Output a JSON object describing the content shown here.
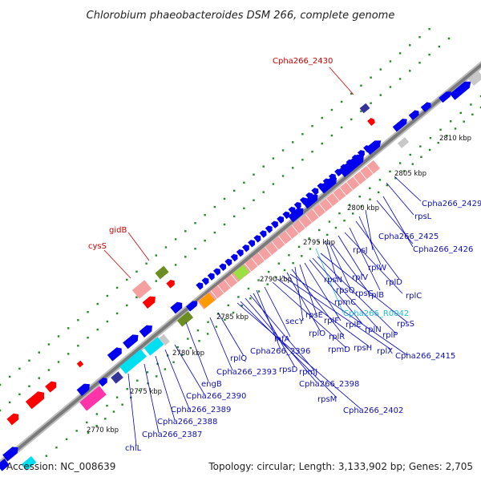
{
  "title": "Chlorobium phaeobacteroides DSM 266, complete genome",
  "footer": {
    "accession": "Accession: NC_008639",
    "topology": "Topology: circular; Length: 3,133,902 bp; Genes: 2,705"
  },
  "colors": {
    "backbone": "#888888",
    "gene_blue": "#0000ee",
    "gene_red": "#ff0000",
    "gene_pink": "#f4a0a0",
    "gene_cyan": "#00e0f0",
    "gene_magenta": "#ff33aa",
    "gene_olive": "#6b8e23",
    "gene_green": "#99e040",
    "gene_orange": "#ff9900",
    "gene_gray": "#c8c8c8",
    "gene_navy": "#333399",
    "dots": "#228b22"
  },
  "kbp_ticks": [
    {
      "label": "2770 kbp"
    },
    {
      "label": "2775 kbp"
    },
    {
      "label": "2780 kbp"
    },
    {
      "label": "2785 kbp"
    },
    {
      "label": "2790 kbp"
    },
    {
      "label": "2795 kbp"
    },
    {
      "label": "2800 kbp"
    },
    {
      "label": "2805 kbp"
    },
    {
      "label": "2810 kbp"
    }
  ],
  "labels_red": [
    {
      "text": "Cpha266_2430"
    },
    {
      "text": "gidB"
    },
    {
      "text": "cysS"
    }
  ],
  "labels_cyan": [
    {
      "text": "Cpha266_R0042"
    }
  ],
  "labels_blue": [
    {
      "text": "Cpha266_2429"
    },
    {
      "text": "rpsL"
    },
    {
      "text": "Cpha266_2425"
    },
    {
      "text": "Cpha266_2426"
    },
    {
      "text": "rpsJ"
    },
    {
      "text": "rplW"
    },
    {
      "text": "rplD"
    },
    {
      "text": "rplV"
    },
    {
      "text": "rplB"
    },
    {
      "text": "rplC"
    },
    {
      "text": "rpsN"
    },
    {
      "text": "rpsQ"
    },
    {
      "text": "rpsC"
    },
    {
      "text": "rpsS"
    },
    {
      "text": "rplP"
    },
    {
      "text": "rpmC"
    },
    {
      "text": "rplN"
    },
    {
      "text": "rplE"
    },
    {
      "text": "rplF"
    },
    {
      "text": "rpsE"
    },
    {
      "text": "secY"
    },
    {
      "text": "rplR"
    },
    {
      "text": "rplO"
    },
    {
      "text": "rplX"
    },
    {
      "text": "Cpha266_2415"
    },
    {
      "text": "rpsH"
    },
    {
      "text": "rpmD"
    },
    {
      "text": "infA"
    },
    {
      "text": "Cpha266_2396"
    },
    {
      "text": "rpsD"
    },
    {
      "text": "rpmJ"
    },
    {
      "text": "Cpha266_2398"
    },
    {
      "text": "rpsM"
    },
    {
      "text": "Cpha266_2402"
    },
    {
      "text": "rplQ"
    },
    {
      "text": "Cpha266_2393"
    },
    {
      "text": "engB"
    },
    {
      "text": "Cpha266_2390"
    },
    {
      "text": "Cpha266_2389"
    },
    {
      "text": "Cpha266_2388"
    },
    {
      "text": "Cpha266_2387"
    },
    {
      "text": "chlL"
    }
  ]
}
